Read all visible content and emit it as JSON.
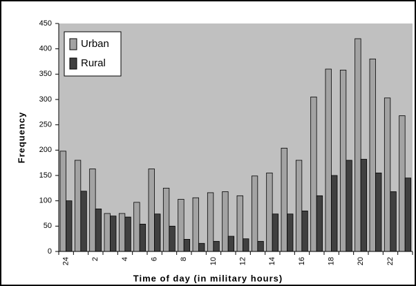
{
  "chart_data": {
    "type": "bar",
    "x_label": "Time of day (in military hours)",
    "y_label": "Frequency",
    "categories": [
      "24",
      null,
      "2",
      null,
      "4",
      null,
      "6",
      null,
      "8",
      null,
      "10",
      null,
      "12",
      null,
      "14",
      null,
      "16",
      null,
      "18",
      null,
      "20",
      null,
      "22",
      null
    ],
    "series": [
      {
        "name": "Urban",
        "color": "#a3a3a3",
        "values": [
          198,
          180,
          163,
          75,
          75,
          97,
          163,
          125,
          103,
          106,
          116,
          118,
          110,
          149,
          155,
          204,
          180,
          305,
          360,
          358,
          420,
          380,
          303,
          268
        ]
      },
      {
        "name": "Rural",
        "color": "#404040",
        "values": [
          100,
          119,
          84,
          70,
          68,
          54,
          74,
          50,
          24,
          16,
          20,
          30,
          25,
          20,
          74,
          74,
          80,
          110,
          150,
          180,
          182,
          155,
          118,
          145
        ]
      }
    ],
    "ylim": [
      0,
      450
    ],
    "yticks": [
      0,
      50,
      100,
      150,
      200,
      250,
      300,
      350,
      400,
      450
    ],
    "legend": "upper left",
    "plot_background": "#c0c0c0"
  }
}
